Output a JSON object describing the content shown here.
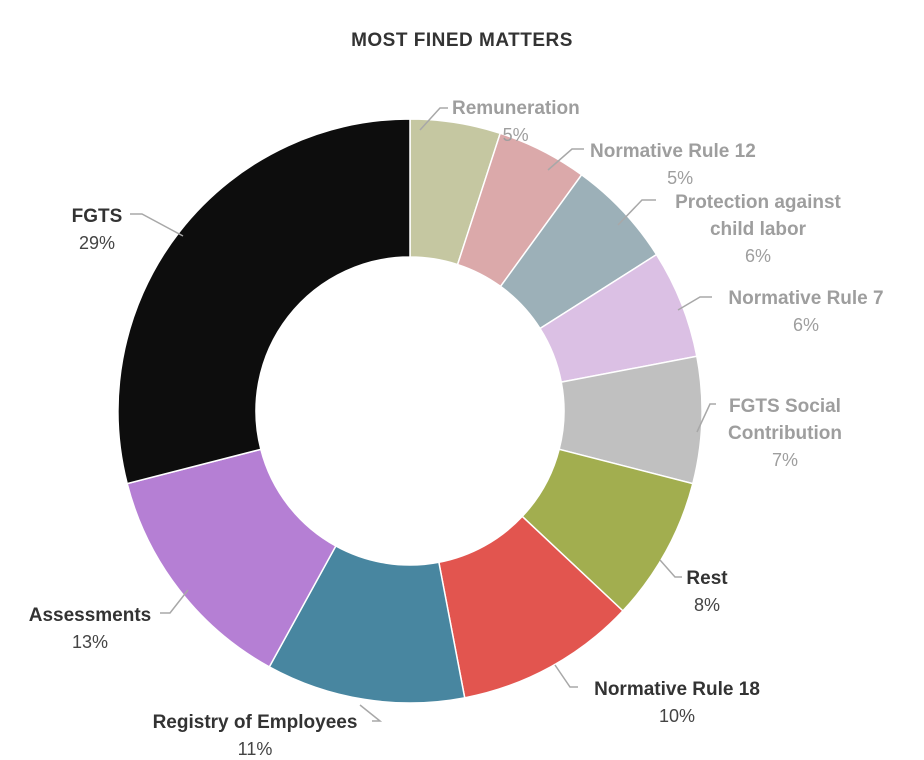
{
  "chart_data": {
    "type": "pie",
    "title": "MOST FINED MATTERS",
    "categories": [
      "Remuneration",
      "Normative Rule 12",
      "Protection against child labor",
      "Normative Rule 7",
      "FGTS Social Contribution",
      "Rest",
      "Normative Rule 18",
      "Registry of Employees",
      "Assessments",
      "FGTS"
    ],
    "values": [
      5,
      5,
      6,
      6,
      7,
      8,
      10,
      11,
      13,
      29
    ],
    "value_labels": [
      "5%",
      "5%",
      "6%",
      "6%",
      "7%",
      "8%",
      "10%",
      "11%",
      "13%",
      "29%"
    ],
    "colors": [
      "#c5c7a1",
      "#dba9aa",
      "#9cb0b8",
      "#dbc0e4",
      "#c0c0c0",
      "#a2ae4f",
      "#e2554f",
      "#4886a0",
      "#b57fd4",
      "#0d0d0d"
    ],
    "label_lines": [
      [
        "Remuneration"
      ],
      [
        "Normative Rule 12"
      ],
      [
        "Protection against",
        "child labor"
      ],
      [
        "Normative Rule 7"
      ],
      [
        "FGTS Social",
        "Contribution"
      ],
      [
        "Rest"
      ],
      [
        "Normative Rule 18"
      ],
      [
        "Registry of Employees"
      ],
      [
        "Assessments"
      ],
      [
        "FGTS"
      ]
    ],
    "label_styles": [
      "muted",
      "muted",
      "muted",
      "muted",
      "muted",
      "dark",
      "dark",
      "dark",
      "dark",
      "dark"
    ],
    "donut": true,
    "start_angle_deg": 0,
    "direction": "clockwise",
    "legend": "none"
  }
}
